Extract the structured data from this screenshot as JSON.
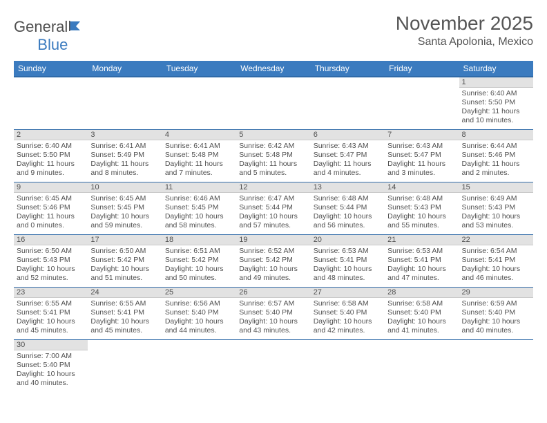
{
  "logo": {
    "text_general": "General",
    "text_blue": "Blue"
  },
  "header": {
    "month_title": "November 2025",
    "location": "Santa Apolonia, Mexico"
  },
  "colors": {
    "header_bg": "#3b7bbf",
    "header_border": "#2f6aa8",
    "daynum_bg": "#e2e2e2",
    "text": "#505050"
  },
  "weekdays": [
    "Sunday",
    "Monday",
    "Tuesday",
    "Wednesday",
    "Thursday",
    "Friday",
    "Saturday"
  ],
  "weeks": [
    [
      null,
      null,
      null,
      null,
      null,
      null,
      {
        "n": "1",
        "sr": "Sunrise: 6:40 AM",
        "ss": "Sunset: 5:50 PM",
        "dl": "Daylight: 11 hours and 10 minutes."
      }
    ],
    [
      {
        "n": "2",
        "sr": "Sunrise: 6:40 AM",
        "ss": "Sunset: 5:50 PM",
        "dl": "Daylight: 11 hours and 9 minutes."
      },
      {
        "n": "3",
        "sr": "Sunrise: 6:41 AM",
        "ss": "Sunset: 5:49 PM",
        "dl": "Daylight: 11 hours and 8 minutes."
      },
      {
        "n": "4",
        "sr": "Sunrise: 6:41 AM",
        "ss": "Sunset: 5:48 PM",
        "dl": "Daylight: 11 hours and 7 minutes."
      },
      {
        "n": "5",
        "sr": "Sunrise: 6:42 AM",
        "ss": "Sunset: 5:48 PM",
        "dl": "Daylight: 11 hours and 5 minutes."
      },
      {
        "n": "6",
        "sr": "Sunrise: 6:43 AM",
        "ss": "Sunset: 5:47 PM",
        "dl": "Daylight: 11 hours and 4 minutes."
      },
      {
        "n": "7",
        "sr": "Sunrise: 6:43 AM",
        "ss": "Sunset: 5:47 PM",
        "dl": "Daylight: 11 hours and 3 minutes."
      },
      {
        "n": "8",
        "sr": "Sunrise: 6:44 AM",
        "ss": "Sunset: 5:46 PM",
        "dl": "Daylight: 11 hours and 2 minutes."
      }
    ],
    [
      {
        "n": "9",
        "sr": "Sunrise: 6:45 AM",
        "ss": "Sunset: 5:46 PM",
        "dl": "Daylight: 11 hours and 0 minutes."
      },
      {
        "n": "10",
        "sr": "Sunrise: 6:45 AM",
        "ss": "Sunset: 5:45 PM",
        "dl": "Daylight: 10 hours and 59 minutes."
      },
      {
        "n": "11",
        "sr": "Sunrise: 6:46 AM",
        "ss": "Sunset: 5:45 PM",
        "dl": "Daylight: 10 hours and 58 minutes."
      },
      {
        "n": "12",
        "sr": "Sunrise: 6:47 AM",
        "ss": "Sunset: 5:44 PM",
        "dl": "Daylight: 10 hours and 57 minutes."
      },
      {
        "n": "13",
        "sr": "Sunrise: 6:48 AM",
        "ss": "Sunset: 5:44 PM",
        "dl": "Daylight: 10 hours and 56 minutes."
      },
      {
        "n": "14",
        "sr": "Sunrise: 6:48 AM",
        "ss": "Sunset: 5:43 PM",
        "dl": "Daylight: 10 hours and 55 minutes."
      },
      {
        "n": "15",
        "sr": "Sunrise: 6:49 AM",
        "ss": "Sunset: 5:43 PM",
        "dl": "Daylight: 10 hours and 53 minutes."
      }
    ],
    [
      {
        "n": "16",
        "sr": "Sunrise: 6:50 AM",
        "ss": "Sunset: 5:43 PM",
        "dl": "Daylight: 10 hours and 52 minutes."
      },
      {
        "n": "17",
        "sr": "Sunrise: 6:50 AM",
        "ss": "Sunset: 5:42 PM",
        "dl": "Daylight: 10 hours and 51 minutes."
      },
      {
        "n": "18",
        "sr": "Sunrise: 6:51 AM",
        "ss": "Sunset: 5:42 PM",
        "dl": "Daylight: 10 hours and 50 minutes."
      },
      {
        "n": "19",
        "sr": "Sunrise: 6:52 AM",
        "ss": "Sunset: 5:42 PM",
        "dl": "Daylight: 10 hours and 49 minutes."
      },
      {
        "n": "20",
        "sr": "Sunrise: 6:53 AM",
        "ss": "Sunset: 5:41 PM",
        "dl": "Daylight: 10 hours and 48 minutes."
      },
      {
        "n": "21",
        "sr": "Sunrise: 6:53 AM",
        "ss": "Sunset: 5:41 PM",
        "dl": "Daylight: 10 hours and 47 minutes."
      },
      {
        "n": "22",
        "sr": "Sunrise: 6:54 AM",
        "ss": "Sunset: 5:41 PM",
        "dl": "Daylight: 10 hours and 46 minutes."
      }
    ],
    [
      {
        "n": "23",
        "sr": "Sunrise: 6:55 AM",
        "ss": "Sunset: 5:41 PM",
        "dl": "Daylight: 10 hours and 45 minutes."
      },
      {
        "n": "24",
        "sr": "Sunrise: 6:55 AM",
        "ss": "Sunset: 5:41 PM",
        "dl": "Daylight: 10 hours and 45 minutes."
      },
      {
        "n": "25",
        "sr": "Sunrise: 6:56 AM",
        "ss": "Sunset: 5:40 PM",
        "dl": "Daylight: 10 hours and 44 minutes."
      },
      {
        "n": "26",
        "sr": "Sunrise: 6:57 AM",
        "ss": "Sunset: 5:40 PM",
        "dl": "Daylight: 10 hours and 43 minutes."
      },
      {
        "n": "27",
        "sr": "Sunrise: 6:58 AM",
        "ss": "Sunset: 5:40 PM",
        "dl": "Daylight: 10 hours and 42 minutes."
      },
      {
        "n": "28",
        "sr": "Sunrise: 6:58 AM",
        "ss": "Sunset: 5:40 PM",
        "dl": "Daylight: 10 hours and 41 minutes."
      },
      {
        "n": "29",
        "sr": "Sunrise: 6:59 AM",
        "ss": "Sunset: 5:40 PM",
        "dl": "Daylight: 10 hours and 40 minutes."
      }
    ],
    [
      {
        "n": "30",
        "sr": "Sunrise: 7:00 AM",
        "ss": "Sunset: 5:40 PM",
        "dl": "Daylight: 10 hours and 40 minutes."
      },
      null,
      null,
      null,
      null,
      null,
      null
    ]
  ]
}
